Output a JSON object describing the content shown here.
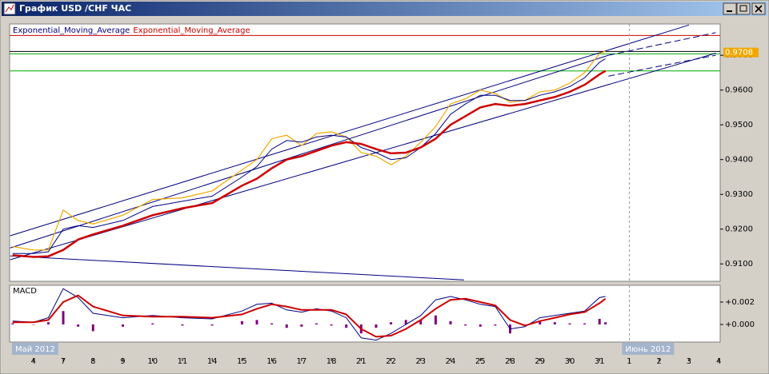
{
  "window": {
    "title": "График USD /CHF  ЧАС"
  },
  "chart_data": [
    {
      "type": "line",
      "x": [
        -0.7,
        0,
        0.5,
        1,
        1.5,
        2,
        3,
        4,
        5,
        6,
        7,
        7.5,
        8,
        8.5,
        9,
        9.5,
        10,
        10.5,
        11,
        11.5,
        12,
        12.5,
        13,
        13.5,
        14,
        14.5,
        15,
        15.5,
        16,
        16.5,
        17,
        17.5,
        18,
        18.5,
        19,
        19.2
      ],
      "series": [
        {
          "color": "#f0a800",
          "line_width": 1.2,
          "values": [
            0.915,
            0.914,
            0.914,
            0.9255,
            0.9225,
            0.9215,
            0.924,
            0.9285,
            0.929,
            0.931,
            0.937,
            0.94,
            0.946,
            0.947,
            0.944,
            0.9475,
            0.948,
            0.9465,
            0.942,
            0.941,
            0.9385,
            0.941,
            0.945,
            0.9495,
            0.956,
            0.9575,
            0.96,
            0.959,
            0.9565,
            0.957,
            0.9595,
            0.96,
            0.962,
            0.965,
            0.9705,
            0.9712
          ]
        },
        {
          "name": "Exponential_Moving_Average",
          "color": "#000080",
          "line_width": 1,
          "values": [
            0.913,
            0.913,
            0.9135,
            0.92,
            0.921,
            0.9205,
            0.9225,
            0.9265,
            0.928,
            0.9295,
            0.935,
            0.938,
            0.943,
            0.9455,
            0.945,
            0.9465,
            0.947,
            0.9465,
            0.9435,
            0.942,
            0.94,
            0.9405,
            0.9435,
            0.9475,
            0.953,
            0.956,
            0.9585,
            0.9585,
            0.957,
            0.957,
            0.9585,
            0.9595,
            0.961,
            0.9635,
            0.968,
            0.969
          ]
        },
        {
          "name": "Exponential_Moving_Average",
          "color": "#cc0000",
          "line_width": 2.5,
          "values": [
            0.9125,
            0.912,
            0.9122,
            0.914,
            0.917,
            0.9185,
            0.921,
            0.924,
            0.926,
            0.9275,
            0.9325,
            0.9345,
            0.9375,
            0.94,
            0.941,
            0.9425,
            0.944,
            0.945,
            0.9445,
            0.943,
            0.9418,
            0.942,
            0.9435,
            0.946,
            0.95,
            0.9525,
            0.955,
            0.956,
            0.9555,
            0.956,
            0.957,
            0.958,
            0.9595,
            0.9615,
            0.9645,
            0.9655
          ]
        }
      ],
      "hlines": [
        {
          "value": 0.9757,
          "color": "#cc0000"
        },
        {
          "value": 0.9711,
          "color": "#000000"
        },
        {
          "value": 0.9704,
          "color": "#00aa00"
        },
        {
          "value": 0.9655,
          "color": "#00aa00"
        }
      ],
      "trendlines": [
        {
          "x": [
            -0.78,
            22.0
          ],
          "values": [
            0.9181,
            0.9787
          ],
          "color": "#000080",
          "dashed": false
        },
        {
          "x": [
            -0.78,
            19.3
          ],
          "values": [
            0.9146,
            0.97
          ],
          "color": "#000080",
          "dashed": false
        },
        {
          "x": [
            19.3,
            22.9
          ],
          "values": [
            0.97,
            0.9765
          ],
          "color": "#000080",
          "dashed": true
        },
        {
          "x": [
            -0.78,
            22.9
          ],
          "values": [
            0.9112,
            0.9706
          ],
          "color": "#000080",
          "dashed": false
        },
        {
          "x": [
            19.3,
            22.9
          ],
          "values": [
            0.964,
            0.97
          ],
          "color": "#000080",
          "dashed": true
        },
        {
          "x": [
            -0.78,
            14.45
          ],
          "values": [
            0.9123,
            0.9054
          ],
          "color": "#000080",
          "dashed": false
        }
      ],
      "last_price": {
        "value": 0.9708,
        "label": "0.9708"
      },
      "xlim": [
        -0.8,
        23.05
      ],
      "ylim": [
        0.905,
        0.979
      ],
      "yticks": [
        {
          "value": 0.91,
          "label": "0.9100"
        },
        {
          "value": 0.92,
          "label": "0.9200"
        },
        {
          "value": 0.93,
          "label": "0.9300"
        },
        {
          "value": 0.94,
          "label": "0.9400"
        },
        {
          "value": 0.95,
          "label": "0.9500"
        },
        {
          "value": 0.96,
          "label": "0.9600"
        },
        {
          "value": 0.97,
          "label": "0.9700"
        }
      ]
    },
    {
      "type": "line",
      "title": "MACD",
      "x": [
        -0.7,
        0,
        0.5,
        1,
        1.5,
        2,
        3,
        4,
        5,
        6,
        7,
        7.5,
        8,
        8.5,
        9,
        9.5,
        10,
        10.5,
        11,
        11.5,
        12,
        12.5,
        13,
        13.5,
        14,
        14.5,
        15,
        15.5,
        16,
        16.5,
        17,
        17.5,
        18,
        18.5,
        19,
        19.2
      ],
      "series": [
        {
          "type": "bar",
          "color": "#800080",
          "values": [
            0.0001,
            0,
            0.0002,
            0.0012,
            -0.0002,
            -0.0006,
            -0.0002,
            0.0001,
            -0.0001,
            -0.0001,
            0.0003,
            0.0004,
            0.0001,
            -0.0003,
            -0.0002,
            0.0001,
            -0.0001,
            -0.0003,
            -0.0008,
            -0.0003,
            0.0002,
            0.0004,
            0.0004,
            0.0008,
            0.0003,
            -0.0001,
            -0.0002,
            -0.0001,
            -0.0008,
            -0.0001,
            0.0003,
            0.0002,
            0.0001,
            0.0001,
            0.0005,
            0.0002
          ]
        },
        {
          "type": "line",
          "color": "#000080",
          "line_width": 1,
          "values": [
            0.0003,
            0.0002,
            0.0006,
            0.0032,
            0.0024,
            0.001,
            0.0006,
            0.0008,
            0.0006,
            0.0005,
            0.0012,
            0.0018,
            0.0019,
            0.0013,
            0.0011,
            0.0014,
            0.0012,
            0.0006,
            -0.0012,
            -0.0014,
            -0.0008,
            0.0,
            0.0008,
            0.0022,
            0.0025,
            0.0022,
            0.0018,
            0.0016,
            -0.0004,
            -0.0002,
            0.0006,
            0.0008,
            0.001,
            0.0012,
            0.0024,
            0.0025
          ]
        },
        {
          "type": "line",
          "color": "#cc0000",
          "line_width": 2,
          "values": [
            0.0002,
            0.0002,
            0.0004,
            0.002,
            0.0026,
            0.0016,
            0.0008,
            0.0007,
            0.0007,
            0.0006,
            0.0009,
            0.0014,
            0.0018,
            0.0016,
            0.0013,
            0.0013,
            0.0013,
            0.0009,
            -0.0004,
            -0.0011,
            -0.001,
            -0.0004,
            0.0004,
            0.0014,
            0.0022,
            0.0023,
            0.002,
            0.0017,
            0.0004,
            -0.0001,
            0.0003,
            0.0006,
            0.0009,
            0.0011,
            0.0019,
            0.0023
          ]
        }
      ],
      "xlim": [
        -0.8,
        23.05
      ],
      "ylim": [
        -0.00157,
        0.0035
      ],
      "yticks": [
        {
          "value": 0.002,
          "label": "+0.002"
        },
        {
          "value": 0,
          "label": "+0.000"
        }
      ],
      "xticks": [
        {
          "value": 0,
          "label": "4"
        },
        {
          "value": 1,
          "label": "7"
        },
        {
          "value": 2,
          "label": "8"
        },
        {
          "value": 3,
          "label": "9"
        },
        {
          "value": 4,
          "label": "10"
        },
        {
          "value": 5,
          "label": "11"
        },
        {
          "value": 6,
          "label": "14"
        },
        {
          "value": 7,
          "label": "15"
        },
        {
          "value": 8,
          "label": "16"
        },
        {
          "value": 9,
          "label": "17"
        },
        {
          "value": 10,
          "label": "18"
        },
        {
          "value": 11,
          "label": "21"
        },
        {
          "value": 12,
          "label": "22"
        },
        {
          "value": 13,
          "label": "23"
        },
        {
          "value": 14,
          "label": "24"
        },
        {
          "value": 15,
          "label": "25"
        },
        {
          "value": 16,
          "label": "28"
        },
        {
          "value": 17,
          "label": "29"
        },
        {
          "value": 18,
          "label": "30"
        },
        {
          "value": 19,
          "label": "31"
        },
        {
          "value": 20,
          "label": "1"
        },
        {
          "value": 21,
          "label": "2"
        },
        {
          "value": 22,
          "label": "3"
        },
        {
          "value": 23,
          "label": "4"
        }
      ],
      "months": [
        "Май 2012",
        "Июнь 2012"
      ]
    }
  ]
}
